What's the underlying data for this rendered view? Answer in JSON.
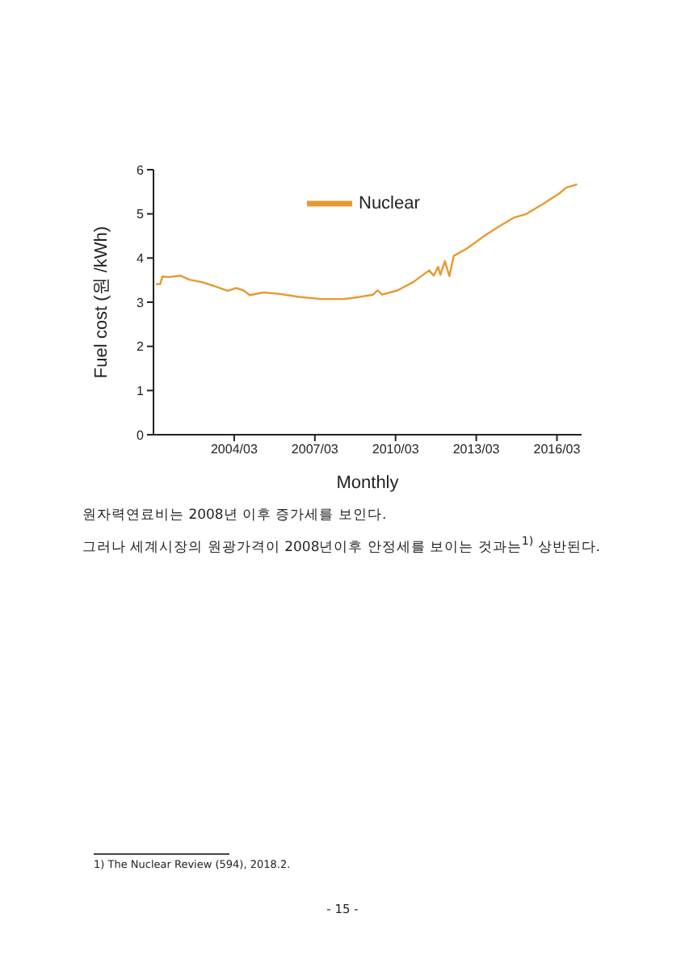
{
  "chart_data": {
    "type": "line",
    "xlabel": "Monthly",
    "ylabel": "Fuel cost (원 /kWh)",
    "x": [
      "2001-04",
      "2001-06",
      "2001-07",
      "2001-10",
      "2002-03",
      "2002-07",
      "2003-01",
      "2003-07",
      "2003-12",
      "2004-04",
      "2004-07",
      "2004-10",
      "2005-04",
      "2005-11",
      "2006-08",
      "2007-06",
      "2008-04",
      "2008-11",
      "2009-05",
      "2009-07",
      "2009-09",
      "2010-04",
      "2010-11",
      "2011-06",
      "2011-08",
      "2011-10",
      "2011-11",
      "2012-01",
      "2012-03",
      "2012-05",
      "2012-11",
      "2013-06",
      "2014-01",
      "2014-08",
      "2015-01",
      "2015-08",
      "2016-04",
      "2016-07",
      "2016-12"
    ],
    "series": [
      {
        "name": "Nuclear",
        "color": "#e69a2e",
        "values": [
          3.41,
          3.41,
          3.58,
          3.57,
          3.6,
          3.51,
          3.45,
          3.35,
          3.26,
          3.32,
          3.27,
          3.16,
          3.22,
          3.19,
          3.12,
          3.07,
          3.07,
          3.12,
          3.17,
          3.27,
          3.17,
          3.27,
          3.46,
          3.72,
          3.6,
          3.8,
          3.62,
          3.93,
          3.59,
          4.05,
          4.22,
          4.48,
          4.71,
          4.92,
          4.99,
          5.2,
          5.46,
          5.59,
          5.67
        ]
      }
    ],
    "xlim": [
      "2001-03",
      "2017-02"
    ],
    "xticks": [
      {
        "value": "2004-03",
        "label": "2004/03"
      },
      {
        "value": "2007-03",
        "label": "2007/03"
      },
      {
        "value": "2010-03",
        "label": "2010/03"
      },
      {
        "value": "2013-03",
        "label": "2013/03"
      },
      {
        "value": "2016-03",
        "label": "2016/03"
      }
    ],
    "ylim": [
      0,
      6
    ],
    "yticks": [
      0,
      1,
      2,
      3,
      4,
      5,
      6
    ],
    "grid": false,
    "legend": "top",
    "marker": "none",
    "line_style": "solid",
    "annotations": [
      "원자력연료비는 2008년 이후 증가세를 보인다.",
      "그러나 세계시장의 원광가격이 2008년이후 안정세를 보이는 것과는$^{1)}$ 상반된다.",
      "1) The Nuclear Review (594), 2018.2.",
      "- 15 -"
    ]
  }
}
